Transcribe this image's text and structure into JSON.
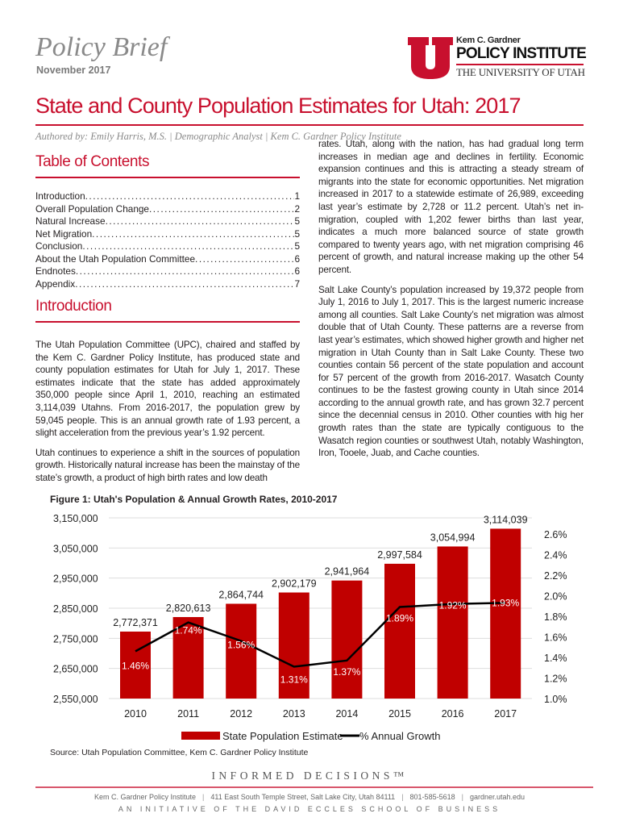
{
  "header": {
    "brief": "Policy Brief",
    "date": "November 2017",
    "logo": {
      "line1": "Kem C. Gardner",
      "line2": "POLICY INSTITUTE",
      "line3": "THE UNIVERSITY OF UTAH",
      "color": "#c8102e"
    },
    "title": "State and County Population Estimates for Utah: 2017",
    "author": "Authored by: Emily Harris, M.S. | Demographic Analyst | Kem C. Gardner Policy Institute"
  },
  "toc": {
    "heading": "Table of Contents",
    "items": [
      {
        "label": "Introduction",
        "page": "1"
      },
      {
        "label": "Overall Population Change",
        "page": "2"
      },
      {
        "label": "Natural Increase",
        "page": "5"
      },
      {
        "label": "Net Migration",
        "page": "5"
      },
      {
        "label": "Conclusion",
        "page": "5"
      },
      {
        "label": "About the Utah Population Committee",
        "page": "6"
      },
      {
        "label": "Endnotes",
        "page": "6"
      },
      {
        "label": "Appendix",
        "page": "7"
      }
    ]
  },
  "intro": {
    "heading": "Introduction",
    "paragraphs": [
      "The Utah Population Committee (UPC), chaired and staffed by the Kem C. Gardner Policy Institute, has produced state and county population estimates for Utah for July 1, 2017. These estimates indicate that the state has added approximately 350,000 people since April 1, 2010, reaching an estimated 3,114,039 Utahns. From 2016-2017, the population grew by 59,045 people. This is an annual growth rate of 1.93 percent, a slight acceleration from the previous year’s 1.92 percent.",
      "Utah continues to experience a shift in the sources of population growth. Historically natural increase has been the mainstay of the state’s growth, a product of high birth rates and low death"
    ]
  },
  "right_column": {
    "paragraphs": [
      "rates. Utah, along with the nation, has had gradual long term increases in median age and declines in fertility. Economic expansion continues and this is attracting a steady stream of migrants into the state for economic opportunities. Net migration increased in 2017 to a statewide estimate of 26,989, exceeding last year’s estimate by 2,728 or 11.2 percent. Utah’s net in-migration, coupled with 1,202 fewer births than last year, indicates a much more balanced source of state growth compared to twenty years ago, with net migration comprising 46 percent of growth, and natural increase making up the other 54 percent.",
      "Salt Lake County’s population increased by 19,372 people from July 1, 2016 to July 1, 2017. This is the largest numeric increase among all counties. Salt Lake County’s net migration was almost double that of Utah County. These patterns are a reverse from last year’s estimates, which showed higher growth and higher net migration in Utah County than in Salt Lake County. These two counties contain 56 percent of the state population and account for 57 percent of the growth from 2016-2017. Wasatch County continues to be the fastest growing county in Utah since 2014 according to the annual growth rate, and has grown 32.7 percent since the decennial census in 2010. Other counties with hig her growth rates than the state are typically contiguous to the Wasatch region counties or southwest Utah, notably Washington, Iron, Tooele, Juab, and Cache counties."
    ]
  },
  "figure": {
    "title": "Figure 1: Utah's Population & Annual Growth Rates, 2010-2017",
    "source": "Source: Utah Population Committee,  Kem C. Gardner Policy Institute"
  },
  "chart_data": {
    "type": "bar+line",
    "categories": [
      "2010",
      "2011",
      "2012",
      "2013",
      "2014",
      "2015",
      "2016",
      "2017"
    ],
    "series": [
      {
        "name": "State Population Estimate",
        "type": "bar",
        "axis": "left",
        "color": "#c00000",
        "values": [
          2772371,
          2820613,
          2864744,
          2902179,
          2941964,
          2997584,
          3054994,
          3114039
        ],
        "labels": [
          "2,772,371",
          "2,820,613",
          "2,864,744",
          "2,902,179",
          "2,941,964",
          "2,997,584",
          "3,054,994",
          "3,114,039"
        ]
      },
      {
        "name": "% Annual Growth",
        "type": "line",
        "axis": "right",
        "color": "#000000",
        "values": [
          1.46,
          1.74,
          1.56,
          1.31,
          1.37,
          1.89,
          1.92,
          1.93
        ],
        "labels": [
          "1.46%",
          "1.74%",
          "1.56%",
          "1.31%",
          "1.37%",
          "1.89%",
          "1.92%",
          "1.93%"
        ]
      }
    ],
    "left_axis": {
      "range": [
        2550000,
        3150000
      ],
      "ticks": [
        "2,550,000",
        "2,650,000",
        "2,750,000",
        "2,850,000",
        "2,950,000",
        "3,050,000",
        "3,150,000"
      ]
    },
    "right_axis": {
      "range": [
        1.0,
        2.6
      ],
      "ticks": [
        "1.0%",
        "1.2%",
        "1.4%",
        "1.6%",
        "1.8%",
        "2.0%",
        "2.2%",
        "2.4%",
        "2.6%"
      ]
    },
    "grid": true,
    "legend": "bottom"
  },
  "footer": {
    "tagline": "INFORMED DECISIONS™",
    "contact": [
      "Kem C. Gardner Policy Institute",
      "411 East South Temple Street, Salt Lake City, Utah 84111",
      "801-585-5618",
      "gardner.utah.edu"
    ],
    "initiative": "AN INITIATIVE OF THE DAVID ECCLES SCHOOL OF BUSINESS"
  }
}
